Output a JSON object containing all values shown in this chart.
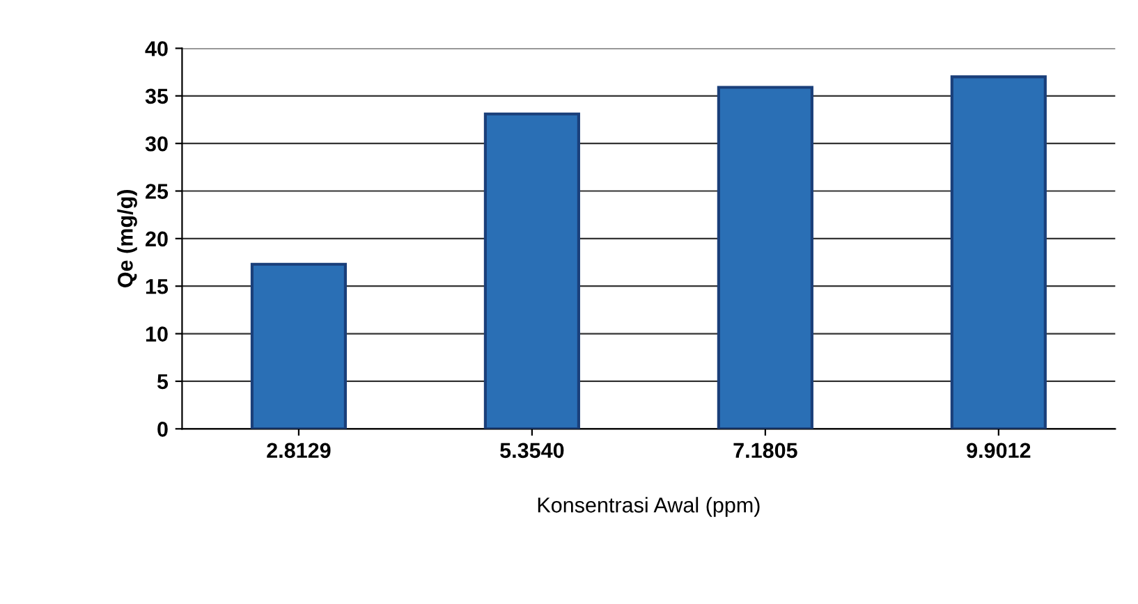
{
  "chart_data": {
    "type": "bar",
    "xlabel": "Konsentrasi Awal (ppm)",
    "ylabel": "Qe (mg/g)",
    "categories": [
      "2.8129",
      "5.3540",
      "7.1805",
      "9.9012"
    ],
    "values": [
      17.3,
      33.1,
      35.9,
      37.0
    ],
    "color": "#2a6fb5",
    "ylim": [
      0,
      40
    ],
    "yticks": [
      0,
      5,
      10,
      15,
      20,
      25,
      30,
      35,
      40
    ],
    "grid": "y"
  }
}
